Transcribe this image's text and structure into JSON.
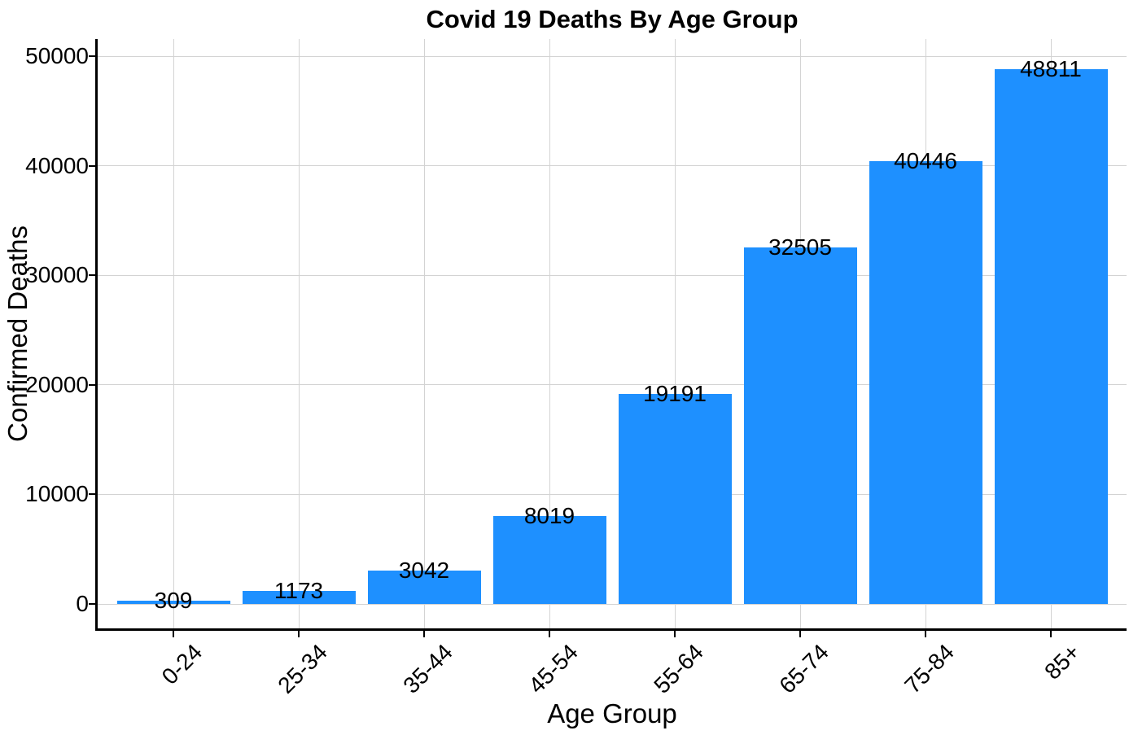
{
  "chart_data": {
    "type": "bar",
    "title": "Covid 19 Deaths By Age Group",
    "xlabel": "Age Group",
    "ylabel": "Confirmed Deaths",
    "categories": [
      "0-24",
      "25-34",
      "35-44",
      "45-54",
      "55-64",
      "65-74",
      "75-84",
      "85+"
    ],
    "values": [
      309,
      1173,
      3042,
      8019,
      19191,
      32505,
      40446,
      48811
    ],
    "bar_labels_shown": true,
    "ylim": [
      0,
      50000
    ],
    "yticks": [
      0,
      10000,
      20000,
      30000,
      40000,
      50000
    ],
    "x_tick_rotation_deg": 45,
    "legend": "none",
    "grid": "on",
    "colors": {
      "bar": "#1E90FF",
      "grid": "#D3D3D3",
      "axis": "#000000",
      "text": "#000000",
      "background": "#FFFFFF"
    }
  }
}
